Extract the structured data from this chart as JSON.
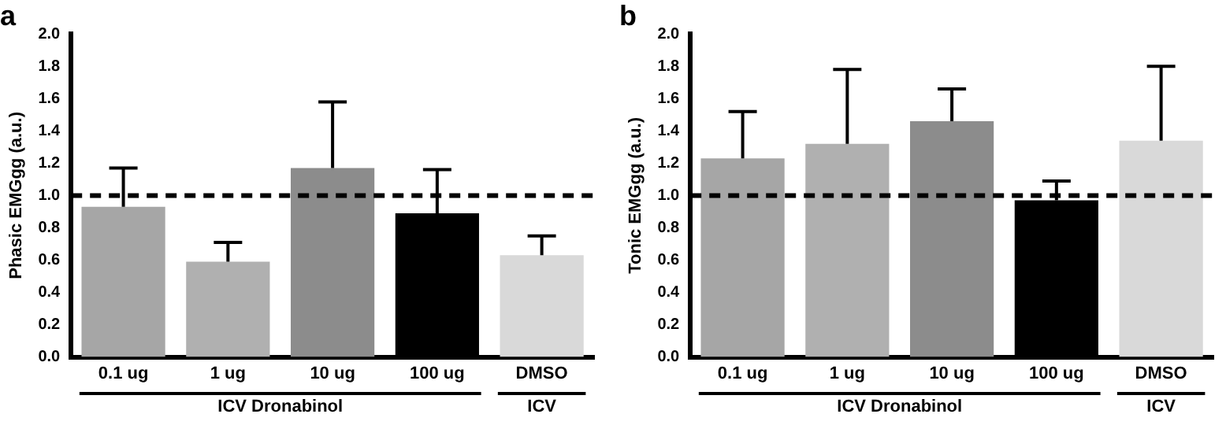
{
  "chart_data": [
    {
      "type": "bar",
      "title": "a",
      "ylabel": "Phasic EMGgg (a.u.)",
      "categories": [
        "0.1 ug",
        "1 ug",
        "10 ug",
        "100 ug",
        "DMSO"
      ],
      "values": [
        0.93,
        0.59,
        1.17,
        0.89,
        0.63
      ],
      "errors": [
        [
          0.93,
          1.17
        ],
        [
          0.59,
          0.71
        ],
        [
          1.17,
          1.58
        ],
        [
          0.89,
          1.16
        ],
        [
          0.63,
          0.75
        ]
      ],
      "colors": [
        "#a6a6a6",
        "#b0b0b0",
        "#8c8c8c",
        "#000000",
        "#d9d9d9"
      ],
      "ylim": [
        0,
        2
      ],
      "yticks": [
        {
          "value": 0,
          "label": "0.0"
        },
        {
          "value": 0.2,
          "label": "0.2"
        },
        {
          "value": 0.4,
          "label": "0.4"
        },
        {
          "value": 0.6,
          "label": "0.6"
        },
        {
          "value": 0.8,
          "label": "0.8"
        },
        {
          "value": 1,
          "label": "1.0"
        },
        {
          "value": 1.2,
          "label": "1.2"
        },
        {
          "value": 1.4,
          "label": "1.4"
        },
        {
          "value": 1.6,
          "label": "1.6"
        },
        {
          "value": 1.8,
          "label": "1.8"
        },
        {
          "value": 2,
          "label": "2.0"
        }
      ],
      "ref_lines": [
        {
          "axis": "y",
          "value": 1,
          "label": null,
          "color": "#000000",
          "line_style": "dashed"
        }
      ],
      "annotations": [
        "ICV Dronabinol",
        "ICV"
      ],
      "grid": false,
      "legend": false
    },
    {
      "type": "bar",
      "title": "b",
      "ylabel": "Tonic EMGgg (a.u.)",
      "categories": [
        "0.1 ug",
        "1 ug",
        "10 ug",
        "100 ug",
        "DMSO"
      ],
      "values": [
        1.23,
        1.32,
        1.46,
        0.97,
        1.34
      ],
      "errors": [
        [
          1.23,
          1.52
        ],
        [
          1.32,
          1.78
        ],
        [
          1.46,
          1.66
        ],
        [
          0.97,
          1.09
        ],
        [
          1.34,
          1.8
        ]
      ],
      "colors": [
        "#a6a6a6",
        "#b0b0b0",
        "#8c8c8c",
        "#000000",
        "#d9d9d9"
      ],
      "ylim": [
        0,
        2
      ],
      "yticks": [
        {
          "value": 0,
          "label": "0.0"
        },
        {
          "value": 0.2,
          "label": "0.2"
        },
        {
          "value": 0.4,
          "label": "0.4"
        },
        {
          "value": 0.6,
          "label": "0.6"
        },
        {
          "value": 0.8,
          "label": "0.8"
        },
        {
          "value": 1,
          "label": "1.0"
        },
        {
          "value": 1.2,
          "label": "1.2"
        },
        {
          "value": 1.4,
          "label": "1.4"
        },
        {
          "value": 1.6,
          "label": "1.6"
        },
        {
          "value": 1.8,
          "label": "1.8"
        },
        {
          "value": 2,
          "label": "2.0"
        }
      ],
      "ref_lines": [
        {
          "axis": "y",
          "value": 1,
          "label": null,
          "color": "#000000",
          "line_style": "dashed"
        }
      ],
      "annotations": [
        "ICV Dronabinol",
        "ICV"
      ],
      "grid": false,
      "legend": false
    }
  ]
}
